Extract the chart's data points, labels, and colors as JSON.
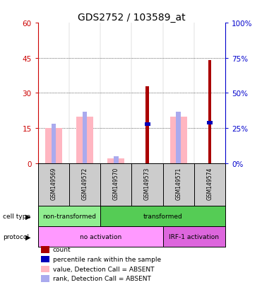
{
  "title": "GDS2752 / 103589_at",
  "samples": [
    "GSM149569",
    "GSM149572",
    "GSM149570",
    "GSM149573",
    "GSM149571",
    "GSM149574"
  ],
  "count_values": [
    0,
    0,
    0,
    33,
    0,
    44
  ],
  "percentile_rank_values": [
    0,
    0,
    0,
    28,
    0,
    29
  ],
  "value_absent": [
    15,
    20,
    2,
    0,
    20,
    0
  ],
  "rank_absent": [
    17,
    22,
    3,
    0,
    22,
    0
  ],
  "ylim_left": [
    0,
    60
  ],
  "ylim_right": [
    0,
    100
  ],
  "yticks_left": [
    0,
    15,
    30,
    45,
    60
  ],
  "yticks_right": [
    0,
    25,
    50,
    75,
    100
  ],
  "cell_type_groups": [
    {
      "label": "non-transformed",
      "start": 0,
      "end": 2,
      "color": "#90EE90"
    },
    {
      "label": "transformed",
      "start": 2,
      "end": 6,
      "color": "#55CC55"
    }
  ],
  "protocol_groups": [
    {
      "label": "no activation",
      "start": 0,
      "end": 4,
      "color": "#FF99FF"
    },
    {
      "label": "IRF-1 activation",
      "start": 4,
      "end": 6,
      "color": "#DD66DD"
    }
  ],
  "count_color": "#AA0000",
  "percentile_color": "#0000BB",
  "value_absent_color": "#FFB6C1",
  "rank_absent_color": "#AAAAEE",
  "axis_color_left": "#CC0000",
  "axis_color_right": "#0000CC",
  "tick_fontsize": 7.5,
  "title_fontsize": 10,
  "label_fontsize": 6.5,
  "legend_fontsize": 6.5,
  "sample_fontsize": 5.5
}
